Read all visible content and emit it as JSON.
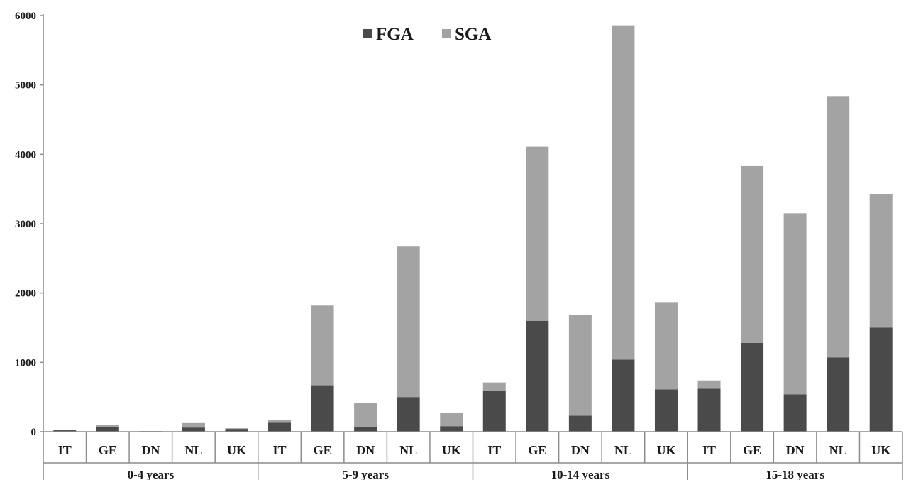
{
  "chart_data": {
    "type": "bar",
    "stacked": true,
    "title": "",
    "xlabel": "",
    "ylabel": "",
    "ylim": [
      0,
      6000
    ],
    "yticks": [
      "0",
      "1000",
      "2000",
      "3000",
      "4000",
      "5000",
      "6000"
    ],
    "grid": false,
    "legend_position": "top-center",
    "colors": {
      "FGA": "#4a4a4a",
      "SGA": "#a3a3a3"
    },
    "groups": [
      {
        "label": "0-4 years",
        "categories": [
          "IT",
          "GE",
          "DN",
          "NL",
          "UK"
        ]
      },
      {
        "label": "5-9 years",
        "categories": [
          "IT",
          "GE",
          "DN",
          "NL",
          "UK"
        ]
      },
      {
        "label": "10-14 years",
        "categories": [
          "IT",
          "GE",
          "DN",
          "NL",
          "UK"
        ]
      },
      {
        "label": "15-18 years",
        "categories": [
          "IT",
          "GE",
          "DN",
          "NL",
          "UK"
        ]
      }
    ],
    "series": [
      {
        "name": "FGA",
        "values": [
          20,
          70,
          5,
          60,
          40,
          130,
          670,
          70,
          500,
          80,
          590,
          1600,
          230,
          1040,
          610,
          620,
          1280,
          540,
          1070,
          1500
        ]
      },
      {
        "name": "SGA",
        "values": [
          5,
          30,
          5,
          65,
          10,
          40,
          1150,
          350,
          2170,
          190,
          120,
          2510,
          1450,
          4820,
          1250,
          120,
          2550,
          2610,
          3770,
          1930
        ]
      }
    ]
  }
}
